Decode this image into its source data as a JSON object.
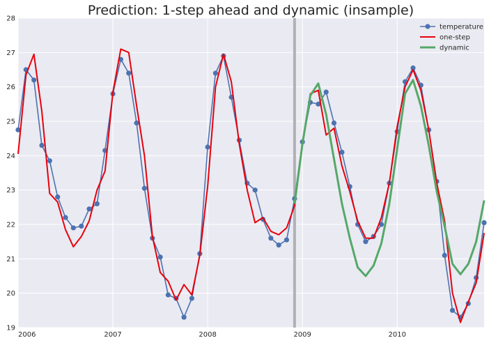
{
  "chart_data": {
    "type": "line",
    "title": "Prediction: 1-step ahead and dynamic (insample)",
    "xlabel": "",
    "ylabel": "",
    "xlim": [
      2006.0,
      2010.917
    ],
    "ylim": [
      19,
      28
    ],
    "grid": true,
    "legend_position": "top-right",
    "x_ticks": [
      {
        "value": 2006,
        "label": "2006"
      },
      {
        "value": 2007,
        "label": "2007"
      },
      {
        "value": 2008,
        "label": "2008"
      },
      {
        "value": 2009,
        "label": "2009"
      },
      {
        "value": 2010,
        "label": "2010"
      }
    ],
    "y_ticks": [
      19,
      20,
      21,
      22,
      23,
      24,
      25,
      26,
      27,
      28
    ],
    "vline": {
      "x": 2008.917,
      "color": "#b0b0b5"
    },
    "series": [
      {
        "name": "temperature",
        "color": "#4c72b0",
        "marker": true,
        "points": [
          [
            2006.0,
            24.75
          ],
          [
            2006.083,
            26.5
          ],
          [
            2006.167,
            26.2
          ],
          [
            2006.25,
            24.3
          ],
          [
            2006.333,
            23.85
          ],
          [
            2006.417,
            22.8
          ],
          [
            2006.5,
            22.2
          ],
          [
            2006.583,
            21.9
          ],
          [
            2006.667,
            21.95
          ],
          [
            2006.75,
            22.45
          ],
          [
            2006.833,
            22.6
          ],
          [
            2006.917,
            24.15
          ],
          [
            2007.0,
            25.8
          ],
          [
            2007.083,
            26.8
          ],
          [
            2007.167,
            26.4
          ],
          [
            2007.25,
            24.95
          ],
          [
            2007.333,
            23.05
          ],
          [
            2007.417,
            21.6
          ],
          [
            2007.5,
            21.05
          ],
          [
            2007.583,
            19.95
          ],
          [
            2007.667,
            19.85
          ],
          [
            2007.75,
            19.3
          ],
          [
            2007.833,
            19.85
          ],
          [
            2007.917,
            21.15
          ],
          [
            2008.0,
            24.25
          ],
          [
            2008.083,
            26.4
          ],
          [
            2008.167,
            26.9
          ],
          [
            2008.25,
            25.7
          ],
          [
            2008.333,
            24.45
          ],
          [
            2008.417,
            23.2
          ],
          [
            2008.5,
            23.0
          ],
          [
            2008.583,
            22.15
          ],
          [
            2008.667,
            21.6
          ],
          [
            2008.75,
            21.4
          ],
          [
            2008.833,
            21.55
          ],
          [
            2008.917,
            22.75
          ],
          [
            2009.0,
            24.4
          ],
          [
            2009.083,
            25.55
          ],
          [
            2009.167,
            25.5
          ],
          [
            2009.25,
            25.85
          ],
          [
            2009.333,
            24.95
          ],
          [
            2009.417,
            24.1
          ],
          [
            2009.5,
            23.1
          ],
          [
            2009.583,
            22.0
          ],
          [
            2009.667,
            21.5
          ],
          [
            2009.75,
            21.65
          ],
          [
            2009.833,
            22.0
          ],
          [
            2009.917,
            23.2
          ],
          [
            2010.0,
            24.7
          ],
          [
            2010.083,
            26.15
          ],
          [
            2010.167,
            26.55
          ],
          [
            2010.25,
            26.05
          ],
          [
            2010.333,
            24.75
          ],
          [
            2010.417,
            23.25
          ],
          [
            2010.5,
            21.1
          ],
          [
            2010.583,
            19.5
          ],
          [
            2010.667,
            19.3
          ],
          [
            2010.75,
            19.7
          ],
          [
            2010.833,
            20.45
          ],
          [
            2010.917,
            22.05
          ]
        ]
      },
      {
        "name": "one-step",
        "color": "#e8000b",
        "marker": false,
        "points": [
          [
            2006.0,
            24.05
          ],
          [
            2006.083,
            26.35
          ],
          [
            2006.167,
            26.95
          ],
          [
            2006.25,
            25.3
          ],
          [
            2006.333,
            22.9
          ],
          [
            2006.417,
            22.65
          ],
          [
            2006.5,
            21.85
          ],
          [
            2006.583,
            21.35
          ],
          [
            2006.667,
            21.65
          ],
          [
            2006.75,
            22.1
          ],
          [
            2006.833,
            23.0
          ],
          [
            2006.917,
            23.55
          ],
          [
            2007.0,
            25.85
          ],
          [
            2007.083,
            27.1
          ],
          [
            2007.167,
            27.0
          ],
          [
            2007.25,
            25.45
          ],
          [
            2007.333,
            24.0
          ],
          [
            2007.417,
            21.65
          ],
          [
            2007.5,
            20.6
          ],
          [
            2007.583,
            20.35
          ],
          [
            2007.667,
            19.8
          ],
          [
            2007.75,
            20.25
          ],
          [
            2007.833,
            19.95
          ],
          [
            2007.917,
            21.1
          ],
          [
            2008.0,
            23.1
          ],
          [
            2008.083,
            26.0
          ],
          [
            2008.167,
            26.95
          ],
          [
            2008.25,
            26.15
          ],
          [
            2008.333,
            24.35
          ],
          [
            2008.417,
            23.0
          ],
          [
            2008.5,
            22.05
          ],
          [
            2008.583,
            22.2
          ],
          [
            2008.667,
            21.8
          ],
          [
            2008.75,
            21.7
          ],
          [
            2008.833,
            21.9
          ],
          [
            2008.917,
            22.55
          ],
          [
            2009.0,
            24.35
          ],
          [
            2009.083,
            25.8
          ],
          [
            2009.167,
            25.9
          ],
          [
            2009.25,
            24.6
          ],
          [
            2009.333,
            24.8
          ],
          [
            2009.417,
            23.7
          ],
          [
            2009.5,
            22.95
          ],
          [
            2009.583,
            22.1
          ],
          [
            2009.667,
            21.6
          ],
          [
            2009.75,
            21.6
          ],
          [
            2009.833,
            22.2
          ],
          [
            2009.917,
            23.2
          ],
          [
            2010.0,
            24.85
          ],
          [
            2010.083,
            26.0
          ],
          [
            2010.167,
            26.5
          ],
          [
            2010.25,
            25.9
          ],
          [
            2010.333,
            24.75
          ],
          [
            2010.417,
            23.2
          ],
          [
            2010.5,
            22.1
          ],
          [
            2010.583,
            20.0
          ],
          [
            2010.667,
            19.15
          ],
          [
            2010.75,
            19.75
          ],
          [
            2010.833,
            20.3
          ],
          [
            2010.917,
            21.75
          ]
        ]
      },
      {
        "name": "dynamic",
        "color": "#55a868",
        "marker": false,
        "points": [
          [
            2008.917,
            22.6
          ],
          [
            2009.0,
            24.35
          ],
          [
            2009.083,
            25.75
          ],
          [
            2009.167,
            26.1
          ],
          [
            2009.25,
            25.2
          ],
          [
            2009.333,
            23.9
          ],
          [
            2009.417,
            22.6
          ],
          [
            2009.5,
            21.6
          ],
          [
            2009.583,
            20.75
          ],
          [
            2009.667,
            20.5
          ],
          [
            2009.75,
            20.8
          ],
          [
            2009.833,
            21.45
          ],
          [
            2009.917,
            22.6
          ],
          [
            2010.0,
            24.2
          ],
          [
            2010.083,
            25.8
          ],
          [
            2010.167,
            26.2
          ],
          [
            2010.25,
            25.45
          ],
          [
            2010.333,
            24.3
          ],
          [
            2010.417,
            22.95
          ],
          [
            2010.5,
            21.95
          ],
          [
            2010.583,
            20.85
          ],
          [
            2010.667,
            20.55
          ],
          [
            2010.75,
            20.85
          ],
          [
            2010.833,
            21.5
          ],
          [
            2010.917,
            22.7
          ]
        ]
      }
    ]
  }
}
